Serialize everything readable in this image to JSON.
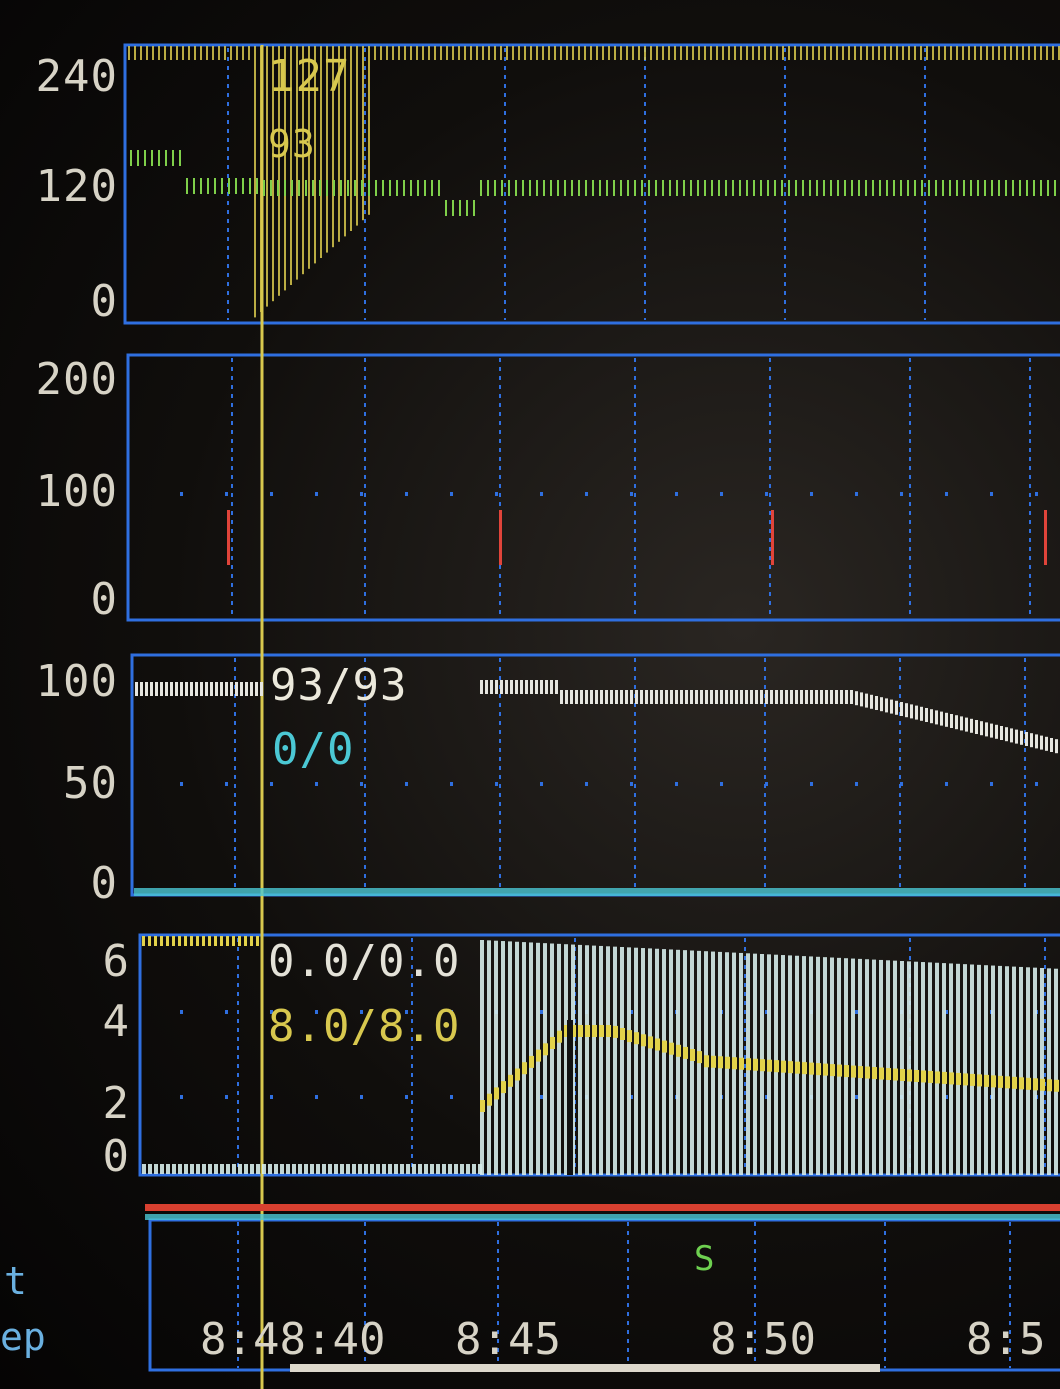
{
  "panels": {
    "top": {
      "y_ticks": [
        "240",
        "120",
        "0"
      ],
      "overlay": {
        "upper": "127",
        "lower": "93"
      },
      "colors": {
        "bars": "#d8c84e",
        "trace": "#7fd04a"
      }
    },
    "second": {
      "y_ticks": [
        "200",
        "100",
        "0"
      ],
      "colors": {
        "marker": "#e0443a"
      }
    },
    "third": {
      "y_ticks": [
        "100",
        "50",
        "0"
      ],
      "overlay": {
        "value": "93/93",
        "sub": "0/0"
      },
      "colors": {
        "trace": "#e6e6e0",
        "sub": "#4bc8d4"
      }
    },
    "fourth": {
      "y_ticks": [
        "6",
        "4",
        "2",
        "0"
      ],
      "overlay": {
        "line1": "0.0/0.0",
        "line2": "8.0/8.0"
      },
      "colors": {
        "bars": "#d6ecea",
        "trace": "#e2d24a"
      }
    }
  },
  "timeline": {
    "event_marker": "S",
    "times": [
      "8:48:40",
      "8:45",
      "8:50",
      "8:5"
    ],
    "side_labels": [
      "t",
      "ep"
    ]
  },
  "colors": {
    "grid": "#2f6fe0",
    "cursor": "#d8c84e",
    "alarm_strip": "#d84030"
  }
}
